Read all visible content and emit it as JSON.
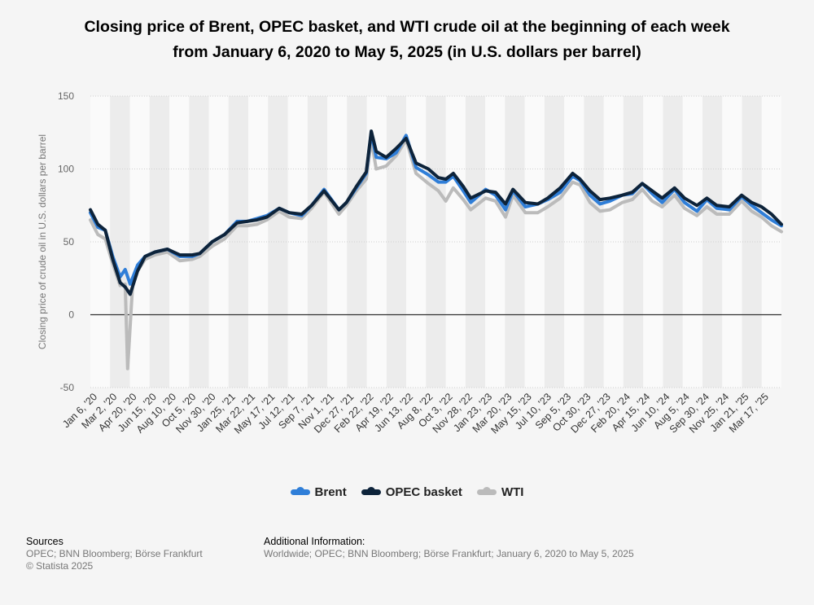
{
  "title_lines": [
    "Closing price of Brent, OPEC basket, and WTI crude oil at the beginning of each week",
    "from January 6, 2020 to May 5, 2025 (in U.S. dollars per barrel)"
  ],
  "footer": {
    "sources_heading": "Sources",
    "sources_text": "OPEC; BNN Bloomberg; Börse Frankfurt",
    "copyright": "© Statista 2025",
    "additional_heading": "Additional Information:",
    "additional_text": "Worldwide; OPEC; BNN Bloomberg; Börse Frankfurt; January 6, 2020 to May 5, 2025"
  },
  "chart_data": {
    "type": "line",
    "title": "Closing price of Brent, OPEC basket, and WTI crude oil at the beginning of each week from January 6, 2020 to May 5, 2025 (in U.S. dollars per barrel)",
    "xlabel": "",
    "ylabel": "Closing price of crude oil in U.S. dollars per barrel",
    "ylim": [
      -50,
      150
    ],
    "yticks": [
      150,
      100,
      50,
      0,
      -50
    ],
    "grid": true,
    "legend": "bottom",
    "x_range": [
      "2020-01-06",
      "2025-05-05"
    ],
    "xtick_labels": [
      "Jan 6, '20",
      "Mar 2, '20",
      "Apr 20, '20",
      "Jun 15, '20",
      "Aug 10, '20",
      "Oct 5, '20",
      "Nov 30, '20",
      "Jan 25, '21",
      "Mar 22, '21",
      "May 17, '21",
      "Jul 12, '21",
      "Sep 7, '21",
      "Nov 1, '21",
      "Dec 27, '21",
      "Feb 22, '22",
      "Apr 19, '22",
      "Jun 13, '22",
      "Aug 8, '22",
      "Oct 3, '22",
      "Nov 28, '22",
      "Jan 23, '23",
      "Mar 20, '23",
      "May 15, '23",
      "Jul 10, '23",
      "Sep 5, '23",
      "Oct 30, '23",
      "Dec 27, '23",
      "Feb 20, '24",
      "Apr 15, '24",
      "Jun 10, '24",
      "Aug 5, '24",
      "Sep 30, '24",
      "Nov 25, '24",
      "Jan 21, '25",
      "Mar 17, '25"
    ],
    "series": [
      {
        "name": "Brent",
        "color": "#2f7ed8",
        "points": [
          [
            "2020-01-06",
            70
          ],
          [
            "2020-01-27",
            60
          ],
          [
            "2020-02-17",
            58
          ],
          [
            "2020-03-09",
            40
          ],
          [
            "2020-03-30",
            26
          ],
          [
            "2020-04-13",
            31
          ],
          [
            "2020-04-27",
            21
          ],
          [
            "2020-05-18",
            34
          ],
          [
            "2020-06-08",
            40
          ],
          [
            "2020-07-06",
            43
          ],
          [
            "2020-08-10",
            45
          ],
          [
            "2020-09-14",
            40
          ],
          [
            "2020-10-19",
            40
          ],
          [
            "2020-11-09",
            42
          ],
          [
            "2020-12-14",
            50
          ],
          [
            "2021-01-18",
            55
          ],
          [
            "2021-02-22",
            64
          ],
          [
            "2021-03-22",
            64
          ],
          [
            "2021-04-19",
            66
          ],
          [
            "2021-05-17",
            68
          ],
          [
            "2021-06-21",
            73
          ],
          [
            "2021-07-19",
            70
          ],
          [
            "2021-08-23",
            68
          ],
          [
            "2021-09-20",
            75
          ],
          [
            "2021-10-25",
            86
          ],
          [
            "2021-12-06",
            72
          ],
          [
            "2021-12-27",
            77
          ],
          [
            "2022-01-24",
            87
          ],
          [
            "2022-02-21",
            97
          ],
          [
            "2022-03-07",
            125
          ],
          [
            "2022-03-21",
            108
          ],
          [
            "2022-04-18",
            107
          ],
          [
            "2022-05-16",
            111
          ],
          [
            "2022-06-13",
            123
          ],
          [
            "2022-07-11",
            101
          ],
          [
            "2022-08-15",
            96
          ],
          [
            "2022-09-12",
            91
          ],
          [
            "2022-10-03",
            91
          ],
          [
            "2022-10-24",
            95
          ],
          [
            "2022-11-21",
            85
          ],
          [
            "2022-12-12",
            77
          ],
          [
            "2023-01-23",
            86
          ],
          [
            "2023-02-20",
            82
          ],
          [
            "2023-03-20",
            72
          ],
          [
            "2023-04-10",
            85
          ],
          [
            "2023-05-15",
            74
          ],
          [
            "2023-06-19",
            76
          ],
          [
            "2023-07-17",
            79
          ],
          [
            "2023-08-21",
            84
          ],
          [
            "2023-09-25",
            95
          ],
          [
            "2023-10-16",
            92
          ],
          [
            "2023-11-13",
            82
          ],
          [
            "2023-12-11",
            76
          ],
          [
            "2024-01-08",
            78
          ],
          [
            "2024-02-12",
            82
          ],
          [
            "2024-03-11",
            83
          ],
          [
            "2024-04-08",
            90
          ],
          [
            "2024-05-06",
            83
          ],
          [
            "2024-06-03",
            77
          ],
          [
            "2024-07-08",
            86
          ],
          [
            "2024-08-05",
            77
          ],
          [
            "2024-09-09",
            71
          ],
          [
            "2024-10-07",
            79
          ],
          [
            "2024-11-04",
            73
          ],
          [
            "2024-12-09",
            72
          ],
          [
            "2025-01-13",
            81
          ],
          [
            "2025-02-10",
            75
          ],
          [
            "2025-03-10",
            70
          ],
          [
            "2025-04-07",
            65
          ],
          [
            "2025-05-05",
            61
          ]
        ]
      },
      {
        "name": "OPEC basket",
        "color": "#0d233a",
        "points": [
          [
            "2020-01-06",
            72
          ],
          [
            "2020-01-27",
            62
          ],
          [
            "2020-02-17",
            58
          ],
          [
            "2020-03-09",
            38
          ],
          [
            "2020-03-30",
            22
          ],
          [
            "2020-04-13",
            19
          ],
          [
            "2020-04-27",
            14
          ],
          [
            "2020-05-18",
            30
          ],
          [
            "2020-06-08",
            40
          ],
          [
            "2020-07-06",
            43
          ],
          [
            "2020-08-10",
            45
          ],
          [
            "2020-09-14",
            41
          ],
          [
            "2020-10-19",
            41
          ],
          [
            "2020-11-09",
            42
          ],
          [
            "2020-12-14",
            50
          ],
          [
            "2021-01-18",
            55
          ],
          [
            "2021-02-22",
            63
          ],
          [
            "2021-03-22",
            64
          ],
          [
            "2021-04-19",
            65
          ],
          [
            "2021-05-17",
            67
          ],
          [
            "2021-06-21",
            73
          ],
          [
            "2021-07-19",
            70
          ],
          [
            "2021-08-23",
            69
          ],
          [
            "2021-09-20",
            75
          ],
          [
            "2021-10-25",
            85
          ],
          [
            "2021-12-06",
            72
          ],
          [
            "2021-12-27",
            77
          ],
          [
            "2022-01-24",
            88
          ],
          [
            "2022-02-21",
            98
          ],
          [
            "2022-03-07",
            126
          ],
          [
            "2022-03-21",
            112
          ],
          [
            "2022-04-18",
            108
          ],
          [
            "2022-05-16",
            114
          ],
          [
            "2022-06-13",
            121
          ],
          [
            "2022-07-11",
            104
          ],
          [
            "2022-08-15",
            100
          ],
          [
            "2022-09-12",
            94
          ],
          [
            "2022-10-03",
            93
          ],
          [
            "2022-10-24",
            97
          ],
          [
            "2022-11-21",
            88
          ],
          [
            "2022-12-12",
            80
          ],
          [
            "2023-01-23",
            85
          ],
          [
            "2023-02-20",
            84
          ],
          [
            "2023-03-20",
            76
          ],
          [
            "2023-04-10",
            86
          ],
          [
            "2023-05-15",
            77
          ],
          [
            "2023-06-19",
            76
          ],
          [
            "2023-07-17",
            80
          ],
          [
            "2023-08-21",
            87
          ],
          [
            "2023-09-25",
            97
          ],
          [
            "2023-10-16",
            93
          ],
          [
            "2023-11-13",
            85
          ],
          [
            "2023-12-11",
            79
          ],
          [
            "2024-01-08",
            80
          ],
          [
            "2024-02-12",
            82
          ],
          [
            "2024-03-11",
            84
          ],
          [
            "2024-04-08",
            90
          ],
          [
            "2024-05-06",
            85
          ],
          [
            "2024-06-03",
            80
          ],
          [
            "2024-07-08",
            87
          ],
          [
            "2024-08-05",
            80
          ],
          [
            "2024-09-09",
            75
          ],
          [
            "2024-10-07",
            80
          ],
          [
            "2024-11-04",
            75
          ],
          [
            "2024-12-09",
            74
          ],
          [
            "2025-01-13",
            82
          ],
          [
            "2025-02-10",
            77
          ],
          [
            "2025-03-10",
            74
          ],
          [
            "2025-04-07",
            69
          ],
          [
            "2025-05-05",
            62
          ]
        ]
      },
      {
        "name": "WTI",
        "color": "#bbbbbb",
        "points": [
          [
            "2020-01-06",
            65
          ],
          [
            "2020-01-27",
            55
          ],
          [
            "2020-02-17",
            52
          ],
          [
            "2020-03-09",
            35
          ],
          [
            "2020-03-30",
            20
          ],
          [
            "2020-04-13",
            21
          ],
          [
            "2020-04-20",
            -37
          ],
          [
            "2020-05-04",
            20
          ],
          [
            "2020-05-18",
            30
          ],
          [
            "2020-06-08",
            38
          ],
          [
            "2020-07-06",
            41
          ],
          [
            "2020-08-10",
            43
          ],
          [
            "2020-09-14",
            37
          ],
          [
            "2020-10-19",
            38
          ],
          [
            "2020-11-09",
            40
          ],
          [
            "2020-12-14",
            47
          ],
          [
            "2021-01-18",
            52
          ],
          [
            "2021-02-22",
            61
          ],
          [
            "2021-03-22",
            61
          ],
          [
            "2021-04-19",
            62
          ],
          [
            "2021-05-17",
            65
          ],
          [
            "2021-06-21",
            71
          ],
          [
            "2021-07-19",
            67
          ],
          [
            "2021-08-23",
            66
          ],
          [
            "2021-09-20",
            73
          ],
          [
            "2021-10-25",
            84
          ],
          [
            "2021-12-06",
            69
          ],
          [
            "2021-12-27",
            75
          ],
          [
            "2022-01-24",
            85
          ],
          [
            "2022-02-21",
            93
          ],
          [
            "2022-03-07",
            120
          ],
          [
            "2022-03-21",
            100
          ],
          [
            "2022-04-18",
            102
          ],
          [
            "2022-05-16",
            109
          ],
          [
            "2022-06-13",
            120
          ],
          [
            "2022-07-11",
            97
          ],
          [
            "2022-08-15",
            90
          ],
          [
            "2022-09-12",
            85
          ],
          [
            "2022-10-03",
            78
          ],
          [
            "2022-10-24",
            87
          ],
          [
            "2022-11-21",
            79
          ],
          [
            "2022-12-12",
            72
          ],
          [
            "2023-01-23",
            80
          ],
          [
            "2023-02-20",
            78
          ],
          [
            "2023-03-20",
            67
          ],
          [
            "2023-04-10",
            82
          ],
          [
            "2023-05-15",
            70
          ],
          [
            "2023-06-19",
            70
          ],
          [
            "2023-07-17",
            74
          ],
          [
            "2023-08-21",
            80
          ],
          [
            "2023-09-25",
            91
          ],
          [
            "2023-10-16",
            89
          ],
          [
            "2023-11-13",
            77
          ],
          [
            "2023-12-11",
            71
          ],
          [
            "2024-01-08",
            72
          ],
          [
            "2024-02-12",
            77
          ],
          [
            "2024-03-11",
            79
          ],
          [
            "2024-04-08",
            86
          ],
          [
            "2024-05-06",
            78
          ],
          [
            "2024-06-03",
            74
          ],
          [
            "2024-07-08",
            82
          ],
          [
            "2024-08-05",
            73
          ],
          [
            "2024-09-09",
            68
          ],
          [
            "2024-10-07",
            74
          ],
          [
            "2024-11-04",
            69
          ],
          [
            "2024-12-09",
            69
          ],
          [
            "2025-01-13",
            78
          ],
          [
            "2025-02-10",
            71
          ],
          [
            "2025-03-10",
            67
          ],
          [
            "2025-04-07",
            61
          ],
          [
            "2025-05-05",
            57
          ]
        ]
      }
    ]
  }
}
